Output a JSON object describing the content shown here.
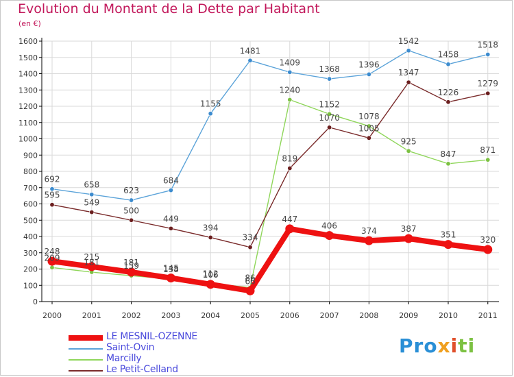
{
  "title": "Evolution du Montant de la Dette par Habitant",
  "unit": "(en €)",
  "logo": {
    "text": "Proxiti",
    "parts": [
      "Pro",
      "x",
      "i",
      "ti"
    ]
  },
  "colors": {
    "title": "#c2185b",
    "legend_text": "#4a4adc",
    "grid": "#d9d9d9",
    "axis": "#000000"
  },
  "chart_data": {
    "type": "line",
    "title": "Evolution du Montant de la Dette par Habitant",
    "ylabel": "(en €)",
    "xlabel": "",
    "categories": [
      "2000",
      "2001",
      "2002",
      "2003",
      "2004",
      "2005",
      "2006",
      "2007",
      "2008",
      "2009",
      "2010",
      "2011"
    ],
    "ylim": [
      0,
      1600
    ],
    "yticks": [
      0,
      100,
      200,
      300,
      400,
      500,
      600,
      700,
      800,
      900,
      1000,
      1100,
      1200,
      1300,
      1400,
      1500,
      1600
    ],
    "grid": true,
    "legend_position": "bottom-left",
    "series": [
      {
        "name": "LE MESNIL-OZENNE",
        "color": "#ee1111",
        "marker": "#ee1111",
        "width": "thick",
        "values": [
          248,
          215,
          181,
          145,
          106,
          66,
          447,
          406,
          374,
          387,
          351,
          320
        ]
      },
      {
        "name": "Saint-Ovin",
        "color": "#5ba3d9",
        "marker": "#3d8ccf",
        "width": "thin",
        "values": [
          692,
          658,
          623,
          684,
          1155,
          1481,
          1409,
          1368,
          1396,
          1542,
          1458,
          1518
        ]
      },
      {
        "name": "Marcilly",
        "color": "#8fd65a",
        "marker": "#7cc142",
        "width": "thin",
        "values": [
          209,
          181,
          159,
          138,
          112,
          86,
          1240,
          1152,
          1078,
          925,
          847,
          871
        ]
      },
      {
        "name": "Le Petit-Celland",
        "color": "#7a2b2b",
        "marker": "#6b1f1f",
        "width": "thin",
        "values": [
          595,
          549,
          500,
          449,
          394,
          334,
          819,
          1070,
          1005,
          1347,
          1226,
          1279
        ]
      }
    ]
  }
}
